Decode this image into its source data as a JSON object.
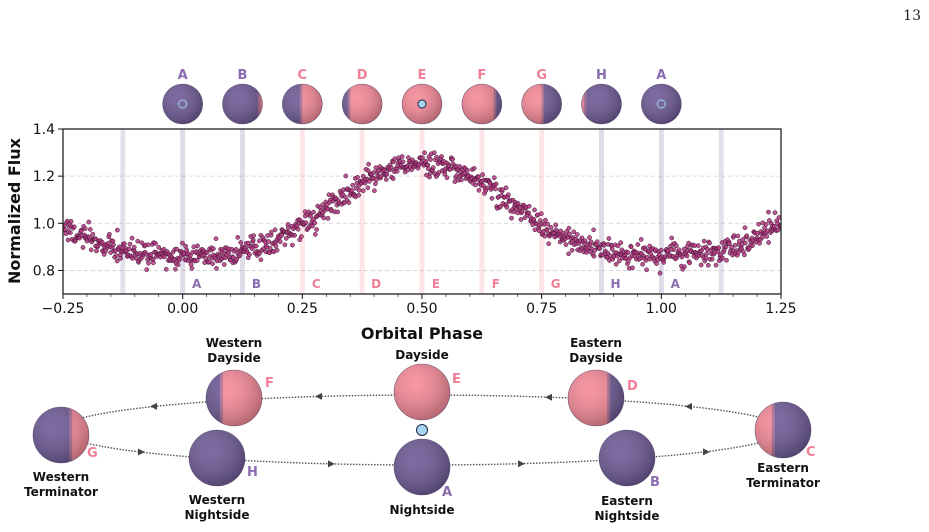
{
  "page_number": "13",
  "colors": {
    "night": "#6e5a96",
    "day": "#f68a98",
    "points": "#b23a7e",
    "star": "#a9d3f0",
    "nightside_label": "#8a6bb0",
    "dayside_label": "#ef7e96"
  },
  "phase_icons": [
    {
      "label": "A",
      "phase": 0.0,
      "day_fraction": 0.0,
      "star": "behind"
    },
    {
      "label": "B",
      "phase": 0.125,
      "day_fraction": 0.06,
      "star": "none"
    },
    {
      "label": "C",
      "phase": 0.25,
      "day_fraction": 0.5,
      "star": "none"
    },
    {
      "label": "D",
      "phase": 0.375,
      "day_fraction": 0.8,
      "star": "none"
    },
    {
      "label": "E",
      "phase": 0.5,
      "day_fraction": 1.0,
      "star": "front"
    },
    {
      "label": "F",
      "phase": 0.625,
      "day_fraction": 0.8,
      "star": "none"
    },
    {
      "label": "G",
      "phase": 0.75,
      "day_fraction": 0.5,
      "star": "none"
    },
    {
      "label": "H",
      "phase": 0.875,
      "day_fraction": 0.06,
      "star": "none"
    },
    {
      "label": "A",
      "phase": 1.0,
      "day_fraction": 0.0,
      "star": "behind"
    }
  ],
  "chart_data": {
    "type": "scatter",
    "xlabel": "Orbital Phase",
    "ylabel": "Normalized Flux",
    "xlim": [
      -0.25,
      1.25
    ],
    "ylim": [
      0.7,
      1.4
    ],
    "xticks": [
      -0.25,
      0.0,
      0.25,
      0.5,
      0.75,
      1.0,
      1.25
    ],
    "xtick_labels": [
      "−0.25",
      "0.00",
      "0.25",
      "0.50",
      "0.75",
      "1.00",
      "1.25"
    ],
    "yticks": [
      0.8,
      1.0,
      1.2,
      1.4
    ],
    "ytick_labels": [
      "0.8",
      "1.0",
      "1.2",
      "1.4"
    ],
    "grid": "horizontal dashed",
    "model": {
      "baseline": 0.865,
      "amplitude": 0.39,
      "scatter": 0.025
    },
    "phase_markers": [
      {
        "label": "A",
        "x": 0.0
      },
      {
        "label": "B",
        "x": 0.125
      },
      {
        "label": "C",
        "x": 0.25
      },
      {
        "label": "D",
        "x": 0.375
      },
      {
        "label": "E",
        "x": 0.5
      },
      {
        "label": "F",
        "x": 0.625
      },
      {
        "label": "G",
        "x": 0.75
      },
      {
        "label": "H",
        "x": 0.875
      },
      {
        "label": "A",
        "x": 1.0
      }
    ],
    "edge_markers": [
      -0.125,
      1.125
    ]
  },
  "orbit": {
    "positions": [
      {
        "label": "E",
        "name": "Dayside",
        "name_lines": [
          "Dayside"
        ],
        "day_side": "full"
      },
      {
        "label": "D",
        "name": "Eastern Dayside",
        "name_lines": [
          "Eastern",
          "Dayside"
        ],
        "day_side": "left"
      },
      {
        "label": "C",
        "name": "Eastern Terminator",
        "name_lines": [
          "Eastern",
          "Terminator"
        ],
        "day_side": "left"
      },
      {
        "label": "B",
        "name": "Eastern Nightside",
        "name_lines": [
          "Eastern",
          "Nightside"
        ],
        "day_side": "none"
      },
      {
        "label": "A",
        "name": "Nightside",
        "name_lines": [
          "Nightside"
        ],
        "day_side": "none"
      },
      {
        "label": "H",
        "name": "Western Nightside",
        "name_lines": [
          "Western",
          "Nightside"
        ],
        "day_side": "none"
      },
      {
        "label": "G",
        "name": "Western Terminator",
        "name_lines": [
          "Western",
          "Terminator"
        ],
        "day_side": "right"
      },
      {
        "label": "F",
        "name": "Western Dayside",
        "name_lines": [
          "Western",
          "Dayside"
        ],
        "day_side": "right"
      }
    ]
  }
}
